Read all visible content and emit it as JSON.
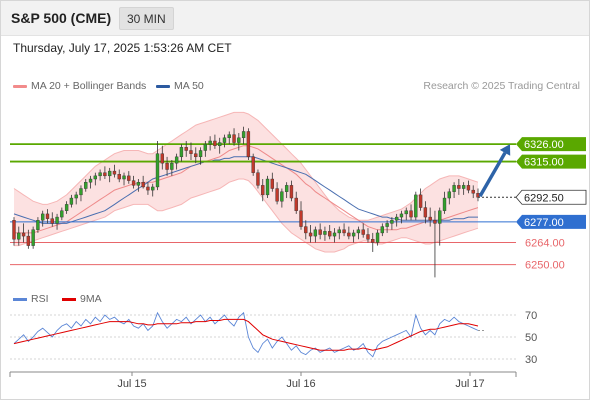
{
  "header": {
    "symbol": "S&P 500 (CME)",
    "interval": "30 MIN",
    "datetime": "Thursday, July 17, 2025 1:53:26 AM CET",
    "credit": "Research © 2025 Trading Central"
  },
  "legend": {
    "items": [
      {
        "label": "MA 20 + Bollinger Bands",
        "color": "#f28b8b"
      },
      {
        "label": "MA 50",
        "color": "#2c5aa0"
      }
    ]
  },
  "rsi_legend": {
    "items": [
      {
        "label": "RSI",
        "color": "#5b86d6"
      },
      {
        "label": "9MA",
        "color": "#e00000"
      }
    ]
  },
  "chart_data": {
    "type": "candlestick",
    "x_ticks": [
      "Jul 15",
      "Jul 16",
      "Jul 17"
    ],
    "price_ylim": [
      6234,
      6357
    ],
    "current_price": 6292.5,
    "levels": [
      {
        "value": 6326.0,
        "label": "6326.00",
        "color": "#5aa800",
        "kind": "resistance"
      },
      {
        "value": 6315.0,
        "label": "6315.00",
        "color": "#5aa800",
        "kind": "resistance"
      },
      {
        "value": 6277.0,
        "label": "6277.00",
        "color": "#2f6fd0",
        "kind": "pivot"
      },
      {
        "value": 6264.0,
        "label": "6264.00",
        "color": "#e8666a",
        "kind": "support"
      },
      {
        "value": 6250.0,
        "label": "6250.00",
        "color": "#e8666a",
        "kind": "support"
      }
    ],
    "forecast_arrow": {
      "from": 6292.5,
      "to": 6326.0,
      "color": "#2d63a8"
    },
    "candles": [
      [
        6278,
        6280,
        6262,
        6266
      ],
      [
        6266,
        6274,
        6262,
        6270
      ],
      [
        6270,
        6276,
        6264,
        6268
      ],
      [
        6268,
        6272,
        6260,
        6262
      ],
      [
        6262,
        6274,
        6260,
        6272
      ],
      [
        6272,
        6280,
        6270,
        6278
      ],
      [
        6278,
        6284,
        6274,
        6282
      ],
      [
        6282,
        6285,
        6276,
        6279
      ],
      [
        6279,
        6283,
        6274,
        6276
      ],
      [
        6276,
        6282,
        6272,
        6280
      ],
      [
        6280,
        6286,
        6278,
        6284
      ],
      [
        6284,
        6290,
        6282,
        6288
      ],
      [
        6288,
        6294,
        6286,
        6292
      ],
      [
        6292,
        6296,
        6288,
        6294
      ],
      [
        6294,
        6300,
        6290,
        6298
      ],
      [
        6298,
        6304,
        6296,
        6302
      ],
      [
        6302,
        6306,
        6298,
        6304
      ],
      [
        6304,
        6308,
        6300,
        6306
      ],
      [
        6306,
        6310,
        6303,
        6308
      ],
      [
        6308,
        6312,
        6304,
        6306
      ],
      [
        6306,
        6311,
        6302,
        6309
      ],
      [
        6309,
        6313,
        6305,
        6307
      ],
      [
        6307,
        6310,
        6302,
        6304
      ],
      [
        6304,
        6308,
        6300,
        6306
      ],
      [
        6306,
        6309,
        6301,
        6303
      ],
      [
        6303,
        6306,
        6298,
        6300
      ],
      [
        6300,
        6304,
        6296,
        6302
      ],
      [
        6302,
        6306,
        6298,
        6299
      ],
      [
        6299,
        6302,
        6294,
        6297
      ],
      [
        6297,
        6301,
        6293,
        6299
      ],
      [
        6299,
        6328,
        6297,
        6320
      ],
      [
        6320,
        6325,
        6310,
        6314
      ],
      [
        6314,
        6318,
        6306,
        6310
      ],
      [
        6310,
        6316,
        6306,
        6314
      ],
      [
        6314,
        6320,
        6310,
        6318
      ],
      [
        6318,
        6326,
        6315,
        6324
      ],
      [
        6324,
        6328,
        6318,
        6322
      ],
      [
        6322,
        6327,
        6316,
        6320
      ],
      [
        6320,
        6324,
        6314,
        6318
      ],
      [
        6318,
        6324,
        6313,
        6322
      ],
      [
        6322,
        6328,
        6318,
        6326
      ],
      [
        6326,
        6331,
        6322,
        6328
      ],
      [
        6328,
        6332,
        6323,
        6325
      ],
      [
        6325,
        6330,
        6320,
        6327
      ],
      [
        6327,
        6332,
        6324,
        6330
      ],
      [
        6330,
        6334,
        6326,
        6332
      ],
      [
        6332,
        6336,
        6325,
        6327
      ],
      [
        6327,
        6333,
        6322,
        6330
      ],
      [
        6330,
        6337,
        6326,
        6334
      ],
      [
        6334,
        6336,
        6316,
        6318
      ],
      [
        6318,
        6320,
        6306,
        6308
      ],
      [
        6308,
        6310,
        6298,
        6300
      ],
      [
        6300,
        6304,
        6290,
        6294
      ],
      [
        6294,
        6306,
        6292,
        6304
      ],
      [
        6304,
        6308,
        6296,
        6298
      ],
      [
        6298,
        6302,
        6288,
        6290
      ],
      [
        6290,
        6298,
        6286,
        6296
      ],
      [
        6296,
        6302,
        6292,
        6300
      ],
      [
        6300,
        6303,
        6290,
        6292
      ],
      [
        6292,
        6296,
        6282,
        6284
      ],
      [
        6284,
        6290,
        6272,
        6274
      ],
      [
        6274,
        6278,
        6266,
        6270
      ],
      [
        6270,
        6275,
        6264,
        6268
      ],
      [
        6268,
        6274,
        6264,
        6272
      ],
      [
        6272,
        6276,
        6266,
        6269
      ],
      [
        6269,
        6274,
        6265,
        6271
      ],
      [
        6271,
        6275,
        6266,
        6268
      ],
      [
        6268,
        6273,
        6264,
        6270
      ],
      [
        6270,
        6274,
        6266,
        6272
      ],
      [
        6272,
        6276,
        6268,
        6270
      ],
      [
        6270,
        6274,
        6266,
        6268
      ],
      [
        6268,
        6272,
        6264,
        6270
      ],
      [
        6270,
        6274,
        6266,
        6272
      ],
      [
        6272,
        6276,
        6267,
        6269
      ],
      [
        6269,
        6273,
        6264,
        6266
      ],
      [
        6266,
        6270,
        6258,
        6264
      ],
      [
        6264,
        6272,
        6262,
        6270
      ],
      [
        6270,
        6276,
        6268,
        6274
      ],
      [
        6274,
        6278,
        6270,
        6276
      ],
      [
        6276,
        6280,
        6272,
        6278
      ],
      [
        6278,
        6282,
        6274,
        6280
      ],
      [
        6280,
        6284,
        6276,
        6282
      ],
      [
        6282,
        6286,
        6278,
        6284
      ],
      [
        6284,
        6288,
        6278,
        6280
      ],
      [
        6280,
        6296,
        6278,
        6294
      ],
      [
        6294,
        6298,
        6284,
        6286
      ],
      [
        6286,
        6290,
        6276,
        6280
      ],
      [
        6280,
        6286,
        6274,
        6278
      ],
      [
        6278,
        6284,
        6242,
        6276
      ],
      [
        6276,
        6286,
        6262,
        6284
      ],
      [
        6284,
        6296,
        6282,
        6292
      ],
      [
        6292,
        6298,
        6288,
        6296
      ],
      [
        6296,
        6302,
        6292,
        6300
      ],
      [
        6300,
        6304,
        6294,
        6298
      ],
      [
        6298,
        6302,
        6294,
        6300
      ],
      [
        6300,
        6303,
        6295,
        6297
      ],
      [
        6297,
        6300,
        6292,
        6295
      ],
      [
        6295,
        6298,
        6290,
        6292.5
      ]
    ],
    "ma20": [
      6270,
      6270,
      6270,
      6270,
      6270,
      6271,
      6272,
      6273,
      6274,
      6275,
      6276,
      6277,
      6279,
      6281,
      6283,
      6285,
      6287,
      6289,
      6291,
      6293,
      6295,
      6297,
      6298,
      6299,
      6300,
      6301,
      6301,
      6302,
      6302,
      6302,
      6303,
      6304,
      6305,
      6306,
      6307,
      6308,
      6310,
      6312,
      6313,
      6314,
      6315,
      6316,
      6317,
      6318,
      6320,
      6322,
      6323,
      6324,
      6325,
      6325,
      6324,
      6323,
      6321,
      6319,
      6317,
      6315,
      6313,
      6311,
      6309,
      6307,
      6304,
      6301,
      6299,
      6296,
      6294,
      6292,
      6290,
      6288,
      6286,
      6284,
      6282,
      6280,
      6278,
      6276,
      6274,
      6273,
      6272,
      6272,
      6272,
      6272,
      6272,
      6273,
      6273,
      6274,
      6275,
      6276,
      6277,
      6278,
      6278,
      6278,
      6279,
      6280,
      6281,
      6282,
      6283,
      6284,
      6285,
      6286
    ],
    "bb_upper": [
      6298,
      6296,
      6294,
      6292,
      6290,
      6289,
      6288,
      6288,
      6289,
      6290,
      6292,
      6294,
      6297,
      6300,
      6303,
      6306,
      6309,
      6312,
      6314,
      6316,
      6318,
      6320,
      6321,
      6322,
      6322,
      6322,
      6322,
      6321,
      6320,
      6320,
      6322,
      6324,
      6326,
      6328,
      6330,
      6332,
      6334,
      6336,
      6338,
      6339,
      6340,
      6341,
      6342,
      6343,
      6344,
      6345,
      6346,
      6346,
      6346,
      6345,
      6343,
      6341,
      6338,
      6335,
      6332,
      6329,
      6326,
      6323,
      6320,
      6317,
      6314,
      6310,
      6306,
      6302,
      6298,
      6294,
      6290,
      6287,
      6284,
      6282,
      6280,
      6279,
      6278,
      6278,
      6278,
      6279,
      6280,
      6281,
      6282,
      6283,
      6284,
      6285,
      6287,
      6289,
      6292,
      6295,
      6298,
      6300,
      6302,
      6304,
      6305,
      6306,
      6306,
      6306,
      6305,
      6304,
      6303,
      6302
    ],
    "bb_lower": [
      6262,
      6262,
      6263,
      6264,
      6265,
      6266,
      6267,
      6268,
      6269,
      6270,
      6271,
      6272,
      6273,
      6274,
      6275,
      6276,
      6277,
      6278,
      6279,
      6280,
      6282,
      6284,
      6285,
      6286,
      6287,
      6288,
      6288,
      6288,
      6288,
      6286,
      6284,
      6284,
      6285,
      6286,
      6287,
      6288,
      6290,
      6292,
      6293,
      6294,
      6295,
      6296,
      6297,
      6298,
      6300,
      6302,
      6303,
      6304,
      6304,
      6303,
      6300,
      6296,
      6292,
      6288,
      6284,
      6280,
      6276,
      6273,
      6270,
      6268,
      6266,
      6264,
      6262,
      6260,
      6259,
      6258,
      6258,
      6258,
      6259,
      6260,
      6262,
      6263,
      6264,
      6265,
      6265,
      6264,
      6263,
      6263,
      6264,
      6265,
      6266,
      6267,
      6267,
      6266,
      6265,
      6264,
      6263,
      6263,
      6264,
      6265,
      6266,
      6267,
      6268,
      6269,
      6270,
      6271,
      6272,
      6273
    ],
    "ma50": [
      6282,
      6281,
      6280,
      6279,
      6278,
      6277,
      6276,
      6276,
      6276,
      6276,
      6276,
      6276,
      6277,
      6278,
      6279,
      6280,
      6281,
      6282,
      6283,
      6284,
      6286,
      6288,
      6290,
      6292,
      6294,
      6296,
      6298,
      6300,
      6302,
      6304,
      6305,
      6306,
      6307,
      6308,
      6309,
      6310,
      6311,
      6312,
      6313,
      6314,
      6315,
      6315,
      6316,
      6316,
      6317,
      6317,
      6318,
      6318,
      6318,
      6318,
      6318,
      6317,
      6316,
      6315,
      6314,
      6313,
      6312,
      6311,
      6310,
      6309,
      6308,
      6307,
      6305,
      6303,
      6301,
      6299,
      6297,
      6295,
      6293,
      6291,
      6289,
      6287,
      6285,
      6284,
      6283,
      6282,
      6281,
      6280,
      6280,
      6279,
      6279,
      6278,
      6278,
      6278,
      6278,
      6278,
      6278,
      6278,
      6278,
      6278,
      6278,
      6278,
      6279,
      6279,
      6279,
      6280,
      6280,
      6280
    ],
    "rsi": {
      "ylim": [
        20,
        80
      ],
      "ticks": [
        70,
        50,
        30
      ],
      "rsi_values": [
        44,
        48,
        52,
        46,
        50,
        55,
        58,
        54,
        50,
        56,
        60,
        62,
        58,
        64,
        60,
        66,
        62,
        68,
        64,
        70,
        66,
        68,
        64,
        62,
        66,
        60,
        58,
        62,
        56,
        60,
        72,
        64,
        58,
        62,
        66,
        64,
        68,
        62,
        66,
        70,
        64,
        68,
        62,
        66,
        70,
        64,
        60,
        68,
        72,
        50,
        40,
        36,
        44,
        48,
        40,
        46,
        50,
        44,
        38,
        42,
        36,
        34,
        38,
        40,
        36,
        38,
        40,
        36,
        38,
        40,
        42,
        38,
        40,
        44,
        36,
        32,
        42,
        46,
        48,
        50,
        52,
        54,
        56,
        50,
        70,
        58,
        52,
        56,
        52,
        62,
        66,
        64,
        68,
        64,
        62,
        60,
        58,
        56
      ],
      "ma_values": [
        44,
        45,
        46,
        47,
        48,
        49,
        50,
        51,
        52,
        53,
        54,
        55,
        56,
        57,
        58,
        59,
        60,
        61,
        62,
        63,
        64,
        64,
        64,
        64,
        64,
        63,
        62,
        62,
        61,
        61,
        62,
        62,
        62,
        62,
        62,
        63,
        63,
        63,
        64,
        64,
        64,
        65,
        65,
        65,
        66,
        66,
        66,
        66,
        66,
        64,
        60,
        56,
        52,
        50,
        48,
        47,
        46,
        45,
        44,
        43,
        42,
        41,
        40,
        39,
        38,
        38,
        38,
        38,
        38,
        38,
        39,
        39,
        39,
        40,
        39,
        38,
        39,
        40,
        41,
        43,
        45,
        47,
        49,
        51,
        53,
        55,
        56,
        57,
        57,
        58,
        59,
        60,
        61,
        62,
        62,
        62,
        61,
        60
      ]
    }
  }
}
